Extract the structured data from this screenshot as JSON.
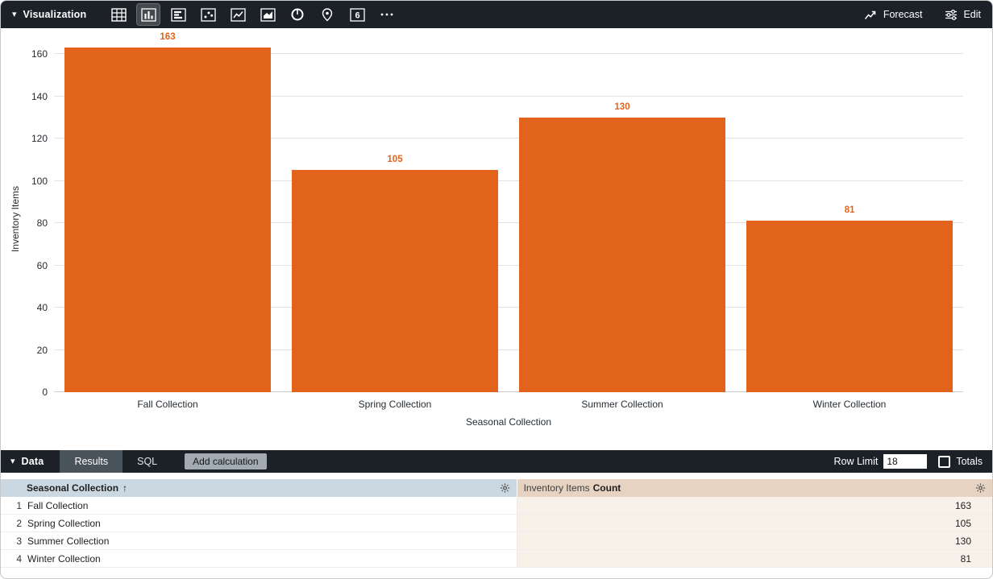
{
  "viz_toolbar": {
    "title": "Visualization",
    "icons": [
      "table-icon",
      "bar-chart-icon",
      "row-chart-icon",
      "scatter-plot-icon",
      "line-chart-icon",
      "area-chart-icon",
      "donut-chart-icon",
      "map-pin-icon",
      "single-value-icon",
      "more-icon"
    ],
    "selected_icon": "bar-chart-icon",
    "single_value_icon_glyph": "6",
    "forecast_label": "Forecast",
    "edit_label": "Edit"
  },
  "chart_data": {
    "type": "bar",
    "title": "",
    "categories": [
      "Fall Collection",
      "Spring Collection",
      "Summer Collection",
      "Winter Collection"
    ],
    "values": [
      163,
      105,
      130,
      81
    ],
    "xlabel": "Seasonal Collection",
    "ylabel": "Inventory Items",
    "ylim": [
      0,
      160
    ],
    "yticks": [
      0,
      20,
      40,
      60,
      80,
      100,
      120,
      140,
      160
    ],
    "grid": true,
    "legend": false,
    "bar_color": "#e2631c",
    "value_label_color": "#e2631c"
  },
  "data_toolbar": {
    "title": "Data",
    "tabs": [
      {
        "label": "Results",
        "active": true
      },
      {
        "label": "SQL",
        "active": false
      }
    ],
    "add_calculation_label": "Add calculation",
    "row_limit_label": "Row Limit",
    "row_limit_value": "18",
    "totals_label": "Totals"
  },
  "table": {
    "dimension_header": "Seasonal Collection",
    "dimension_sort_indicator": "↑",
    "measure_header_prefix": "Inventory Items",
    "measure_header_suffix": "Count",
    "rows": [
      {
        "index": "1",
        "dimension": "Fall Collection",
        "value": "163"
      },
      {
        "index": "2",
        "dimension": "Spring Collection",
        "value": "105"
      },
      {
        "index": "3",
        "dimension": "Summer Collection",
        "value": "130"
      },
      {
        "index": "4",
        "dimension": "Winter Collection",
        "value": "81"
      }
    ]
  }
}
